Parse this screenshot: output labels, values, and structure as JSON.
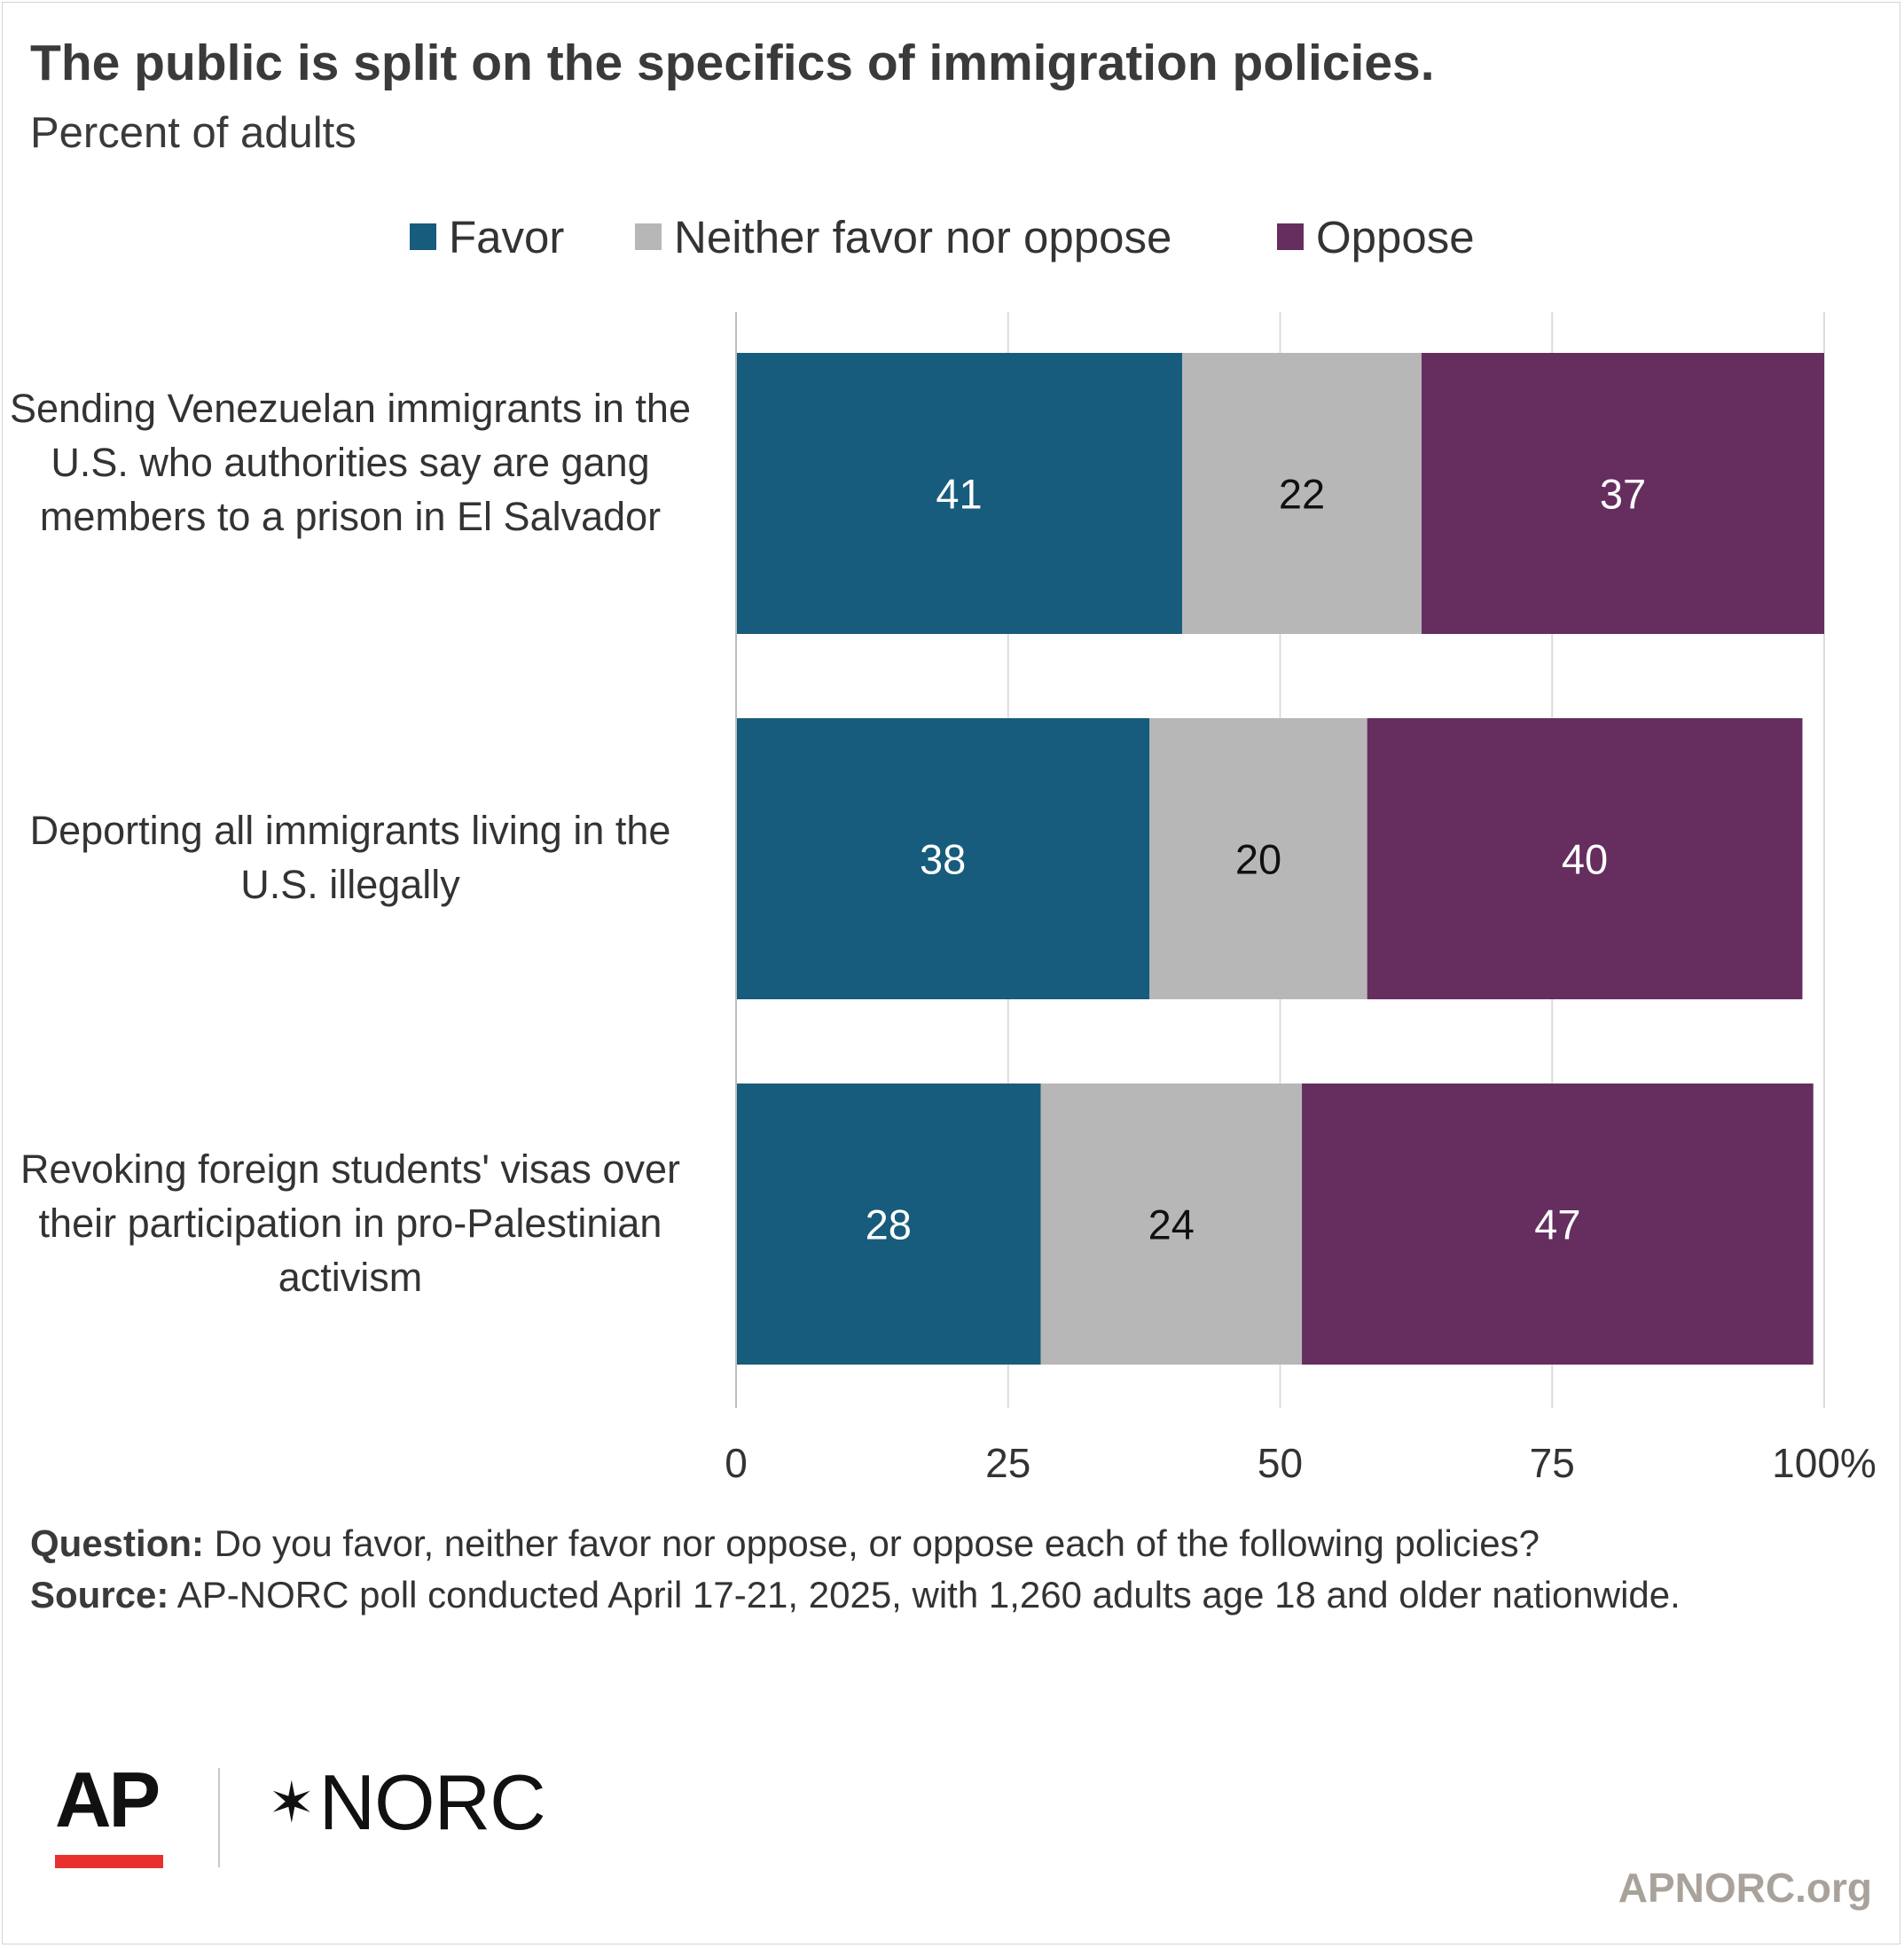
{
  "chart_data": {
    "type": "bar",
    "orientation": "horizontal",
    "stacked": true,
    "title": "The public is split on the specifics of immigration policies.",
    "subtitle": "Percent of adults",
    "categories": [
      "Sending Venezuelan immigrants in the U.S. who authorities say are gang members to a prison in El Salvador",
      "Deporting all immigrants living in the U.S. illegally",
      "Revoking foreign students' visas over their participation in pro-Palestinian activism"
    ],
    "series": [
      {
        "name": "Favor",
        "values": [
          41,
          38,
          28
        ],
        "color": "#175c7c"
      },
      {
        "name": "Neither favor nor oppose",
        "values": [
          22,
          20,
          24
        ],
        "color": "#b7b7b7"
      },
      {
        "name": "Oppose",
        "values": [
          37,
          40,
          47
        ],
        "color": "#652e5f"
      }
    ],
    "xlim": [
      0,
      100
    ],
    "x_ticks": [
      "0",
      "25",
      "50",
      "75",
      "100%"
    ],
    "grid": true,
    "legend_position": "top"
  },
  "question": {
    "label": "Question:",
    "text": "Do you favor, neither favor nor oppose, or oppose each of the following policies?"
  },
  "source": {
    "label": "Source:",
    "text": "AP-NORC poll conducted April 17-21, 2025, with 1,260 adults age 18 and older nationwide."
  },
  "logos": {
    "ap": "AP",
    "ap_color": "#e8312f",
    "norc": "NORC"
  },
  "site_url": "APNORC.org"
}
